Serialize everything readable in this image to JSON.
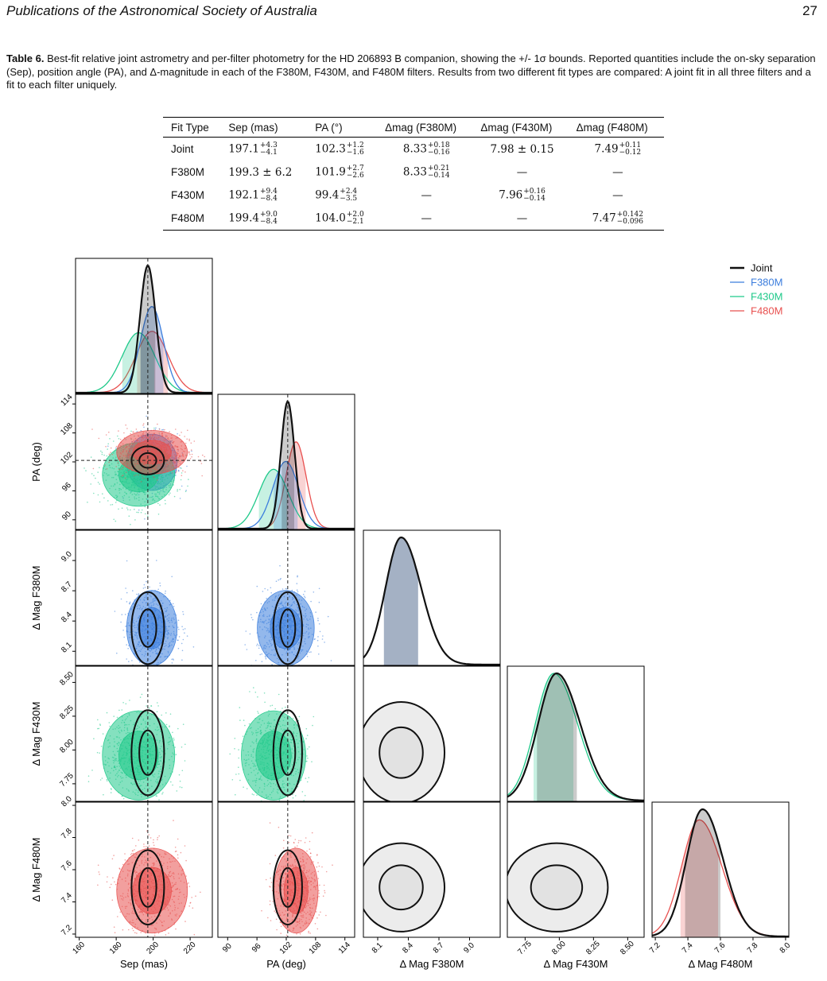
{
  "header": {
    "journal": "Publications of the Astronomical Society of Australia",
    "page_number": "27"
  },
  "caption": {
    "label": "Table 6.",
    "text": "Best-fit relative joint astrometry and per-filter photometry for the HD 206893 B companion, showing the +/- 1σ bounds. Reported quantities include the on-sky separation (Sep), position angle (PA), and Δ-magnitude in each of the F380M, F430M, and F480M filters. Results from two different fit types are compared: A joint fit in all three filters and a fit to each filter uniquely."
  },
  "table": {
    "headers": [
      "Fit Type",
      "Sep (mas)",
      "PA (°)",
      "Δmag (F380M)",
      "Δmag (F430M)",
      "Δmag (F480M)"
    ],
    "rows": [
      {
        "label": "Joint",
        "cells": [
          {
            "v": "197.1",
            "up": "+4.3",
            "lo": "−4.1"
          },
          {
            "v": "102.3",
            "up": "+1.2",
            "lo": "−1.6"
          },
          {
            "v": "8.33",
            "up": "+0.18",
            "lo": "−0.16"
          },
          {
            "v": "7.98 ± 0.15",
            "up": "",
            "lo": ""
          },
          {
            "v": "7.49",
            "up": "+0.11",
            "lo": "−0.12"
          }
        ]
      },
      {
        "label": "F380M",
        "cells": [
          {
            "v": "199.3 ± 6.2",
            "up": "",
            "lo": ""
          },
          {
            "v": "101.9",
            "up": "+2.7",
            "lo": "−2.6"
          },
          {
            "v": "8.33",
            "up": "+0.21",
            "lo": "−0.14"
          },
          {
            "v": "—",
            "up": "",
            "lo": ""
          },
          {
            "v": "—",
            "up": "",
            "lo": ""
          }
        ]
      },
      {
        "label": "F430M",
        "cells": [
          {
            "v": "192.1",
            "up": "+9.4",
            "lo": "−8.4"
          },
          {
            "v": "99.4",
            "up": "+2.4",
            "lo": "−3.5"
          },
          {
            "v": "—",
            "up": "",
            "lo": ""
          },
          {
            "v": "7.96",
            "up": "+0.16",
            "lo": "−0.14"
          },
          {
            "v": "—",
            "up": "",
            "lo": ""
          }
        ]
      },
      {
        "label": "F480M",
        "cells": [
          {
            "v": "199.4",
            "up": "+9.0",
            "lo": "−8.4"
          },
          {
            "v": "104.0",
            "up": "+2.0",
            "lo": "−2.1"
          },
          {
            "v": "—",
            "up": "",
            "lo": ""
          },
          {
            "v": "—",
            "up": "",
            "lo": ""
          },
          {
            "v": "7.47",
            "up": "+0.142",
            "lo": "−0.096"
          }
        ]
      }
    ]
  },
  "chart_data": {
    "type": "corner",
    "parameters": [
      {
        "label": "Sep (mas)",
        "ticks": [
          "160",
          "180",
          "200",
          "220"
        ],
        "tick_values": [
          160,
          180,
          200,
          220
        ],
        "range": [
          158,
          232
        ],
        "truth": 197.1
      },
      {
        "label": "PA (deg)",
        "ticks": [
          "90",
          "96",
          "102",
          "108",
          "114"
        ],
        "tick_values": [
          90,
          96,
          102,
          108,
          114
        ],
        "range": [
          88,
          116
        ],
        "truth": 102.3
      },
      {
        "label": "Δ Mag F380M",
        "ticks": [
          "8.1",
          "8.4",
          "8.7",
          "9.0"
        ],
        "tick_values": [
          8.1,
          8.4,
          8.7,
          9.0
        ],
        "range": [
          7.96,
          9.3
        ],
        "truth": null
      },
      {
        "label": "Δ Mag F430M",
        "ticks": [
          "7.75",
          "8.00",
          "8.25",
          "8.50"
        ],
        "tick_values": [
          7.75,
          8.0,
          8.25,
          8.5
        ],
        "range": [
          7.62,
          8.62
        ],
        "truth": null
      },
      {
        "label": "Δ Mag F480M",
        "ticks": [
          "7.2",
          "7.4",
          "7.6",
          "7.8",
          "8.0"
        ],
        "tick_values": [
          7.2,
          7.4,
          7.6,
          7.8,
          8.0
        ],
        "range": [
          7.18,
          8.02
        ],
        "truth": null
      }
    ],
    "series": [
      {
        "name": "Joint",
        "color": "#111111",
        "params": [
          0,
          1,
          2,
          3,
          4
        ],
        "mean": [
          197.1,
          102.3,
          8.33,
          7.98,
          7.49
        ],
        "sigma": [
          4.2,
          1.4,
          0.17,
          0.15,
          0.11
        ]
      },
      {
        "name": "F380M",
        "color": "#3b7ddd",
        "params": [
          0,
          1,
          2
        ],
        "mean": [
          199.3,
          101.9,
          8.33
        ],
        "sigma": [
          6.2,
          2.65,
          0.17
        ]
      },
      {
        "name": "F430M",
        "color": "#1fc98a",
        "params": [
          0,
          1,
          3
        ],
        "mean": [
          192.1,
          99.4,
          7.96
        ],
        "sigma": [
          8.9,
          3.0,
          0.15
        ]
      },
      {
        "name": "F480M",
        "color": "#e8504f",
        "params": [
          0,
          1,
          4
        ],
        "mean": [
          199.4,
          104.0,
          7.47
        ],
        "sigma": [
          8.7,
          2.05,
          0.12
        ]
      }
    ],
    "legend": {
      "position": "top-right"
    }
  }
}
